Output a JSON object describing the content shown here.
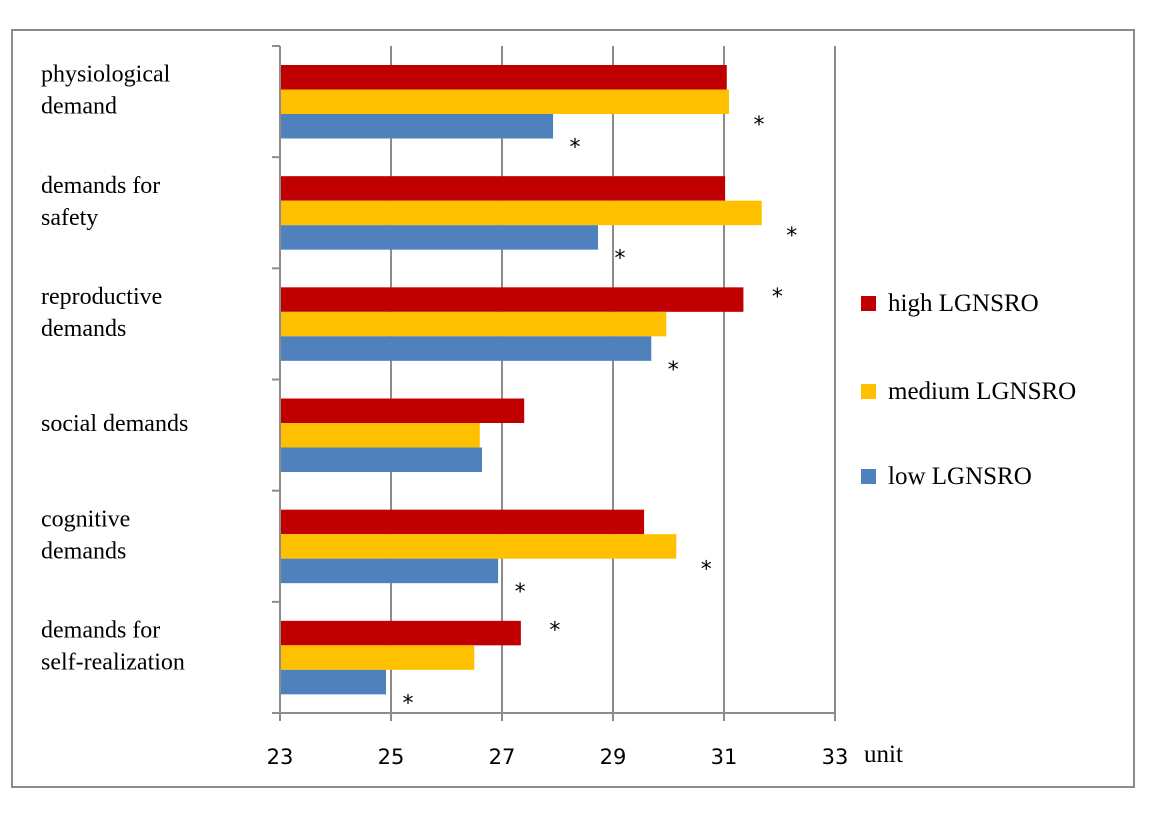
{
  "chart_data": {
    "type": "bar",
    "orientation": "horizontal",
    "title": "",
    "xlabel": "unit",
    "ylabel": "",
    "xlim": [
      23,
      33
    ],
    "xticks": [
      "23",
      "25",
      "27",
      "29",
      "31",
      "33"
    ],
    "grid": true,
    "legend_position": "right",
    "categories": [
      [
        "physiological",
        "demand"
      ],
      [
        "demands for",
        "safety"
      ],
      [
        "reproductive",
        "demands"
      ],
      [
        "social demands"
      ],
      [
        "cognitive",
        "demands"
      ],
      [
        "demands for",
        "self-realization"
      ]
    ],
    "series": [
      {
        "name": "high LGNSRO",
        "color": "#C00000",
        "values": [
          31.05,
          31.02,
          31.35,
          27.4,
          29.56,
          27.34
        ],
        "significant": [
          false,
          false,
          true,
          false,
          false,
          true
        ]
      },
      {
        "name": "medium LGNSRO",
        "color": "#FFC000",
        "values": [
          31.09,
          31.68,
          29.96,
          26.6,
          30.14,
          26.5
        ],
        "significant": [
          true,
          true,
          false,
          false,
          true,
          false
        ]
      },
      {
        "name": "low LGNSRO",
        "color": "#4F81BD",
        "values": [
          27.92,
          28.73,
          29.69,
          26.64,
          26.93,
          24.91
        ],
        "significant": [
          true,
          true,
          true,
          false,
          true,
          true
        ]
      }
    ],
    "significance_marker": "*"
  }
}
